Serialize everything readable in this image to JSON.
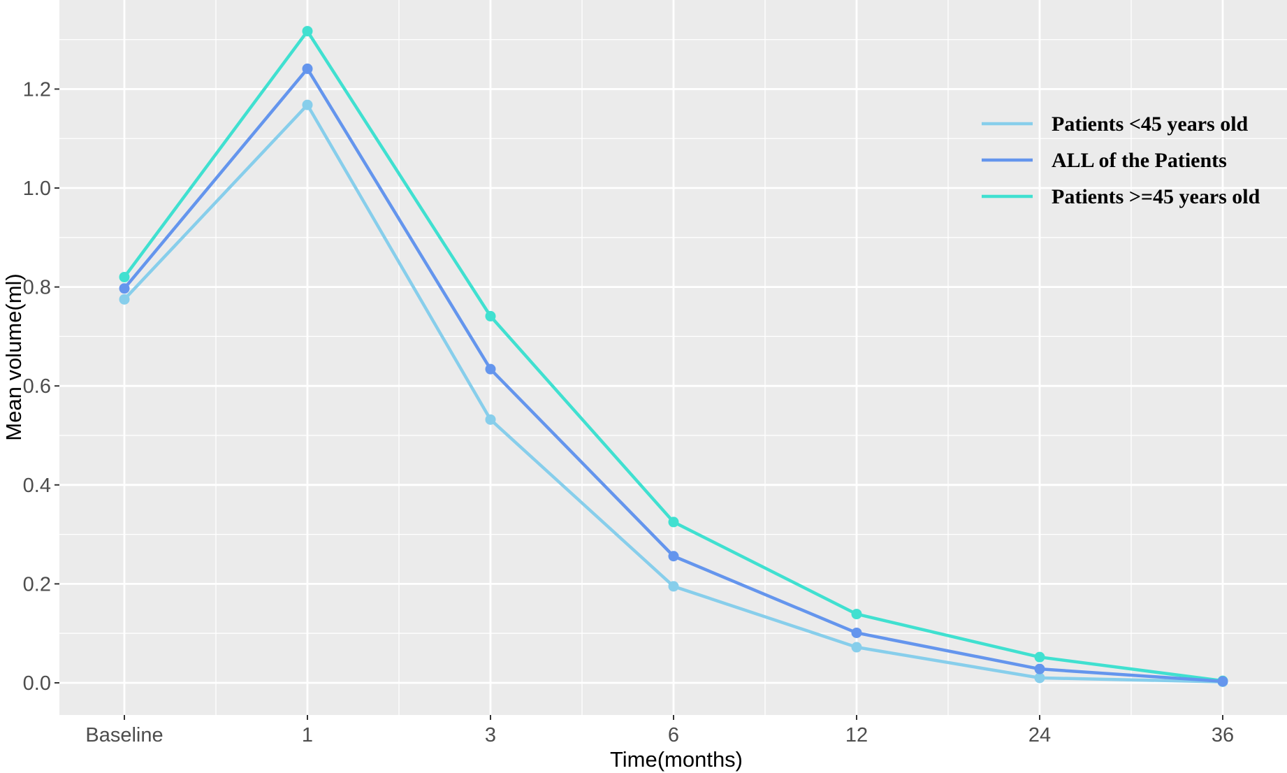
{
  "chart_data": {
    "type": "line",
    "title": "",
    "xlabel": "Time(months)",
    "ylabel": "Mean volume(ml)",
    "categories": [
      "Baseline",
      "1",
      "3",
      "6",
      "12",
      "24",
      "36"
    ],
    "ylim": [
      -0.065,
      1.38
    ],
    "yticks": [
      0.0,
      0.2,
      0.4,
      0.6,
      0.8,
      1.0,
      1.2
    ],
    "ytick_labels": [
      "0.0",
      "0.2",
      "0.4",
      "0.6",
      "0.8",
      "1.0",
      "1.2"
    ],
    "grid": true,
    "legend_position": "top-right",
    "background_color": "#ebebeb",
    "grid_color": "#ffffff",
    "series": [
      {
        "name": "Patients  <45 years old",
        "color": "#87ceeb",
        "values": [
          0.775,
          1.168,
          0.532,
          0.195,
          0.072,
          0.01,
          0.002
        ]
      },
      {
        "name": "ALL of the Patients",
        "color": "#6495ed",
        "values": [
          0.797,
          1.241,
          0.634,
          0.256,
          0.101,
          0.028,
          0.003
        ]
      },
      {
        "name": "Patients >=45 years old",
        "color": "#40e0d0",
        "values": [
          0.82,
          1.317,
          0.741,
          0.325,
          0.139,
          0.052,
          0.004
        ]
      }
    ]
  }
}
